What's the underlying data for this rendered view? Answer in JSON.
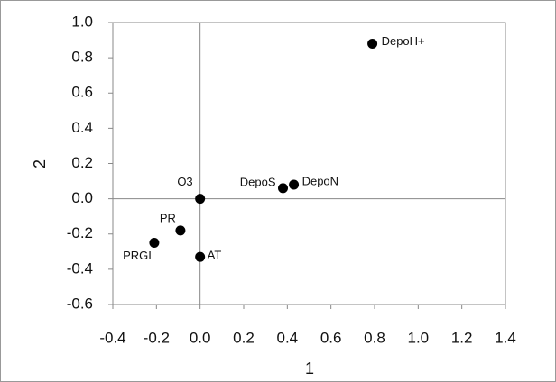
{
  "chart_data": {
    "type": "scatter",
    "x_label": "1",
    "y_label": "2",
    "labels": [
      "DepoH+",
      "DepoS",
      "DepoN",
      "O3",
      "PR",
      "PRGI",
      "AT"
    ],
    "x": [
      0.79,
      0.38,
      0.43,
      0.0,
      -0.09,
      -0.21,
      0.0
    ],
    "values": [
      0.88,
      0.06,
      0.08,
      0.0,
      -0.18,
      -0.25,
      -0.33
    ],
    "color": "#000000",
    "xlim": [
      -0.4,
      1.4
    ],
    "xticks": [
      -0.4,
      -0.2,
      {
        "value": 0,
        "label": "0.0"
      },
      0.2,
      0.4,
      0.6,
      0.8,
      {
        "value": 1,
        "label": "1.0"
      },
      1.2,
      1.4
    ],
    "ylim": [
      -0.6,
      1.0
    ],
    "yticks": [
      -0.6,
      -0.4,
      -0.2,
      {
        "value": 0,
        "label": "0.0"
      },
      0.2,
      0.4,
      0.6,
      0.8,
      {
        "value": 1,
        "label": "1.0"
      }
    ],
    "zero_lines": true
  }
}
